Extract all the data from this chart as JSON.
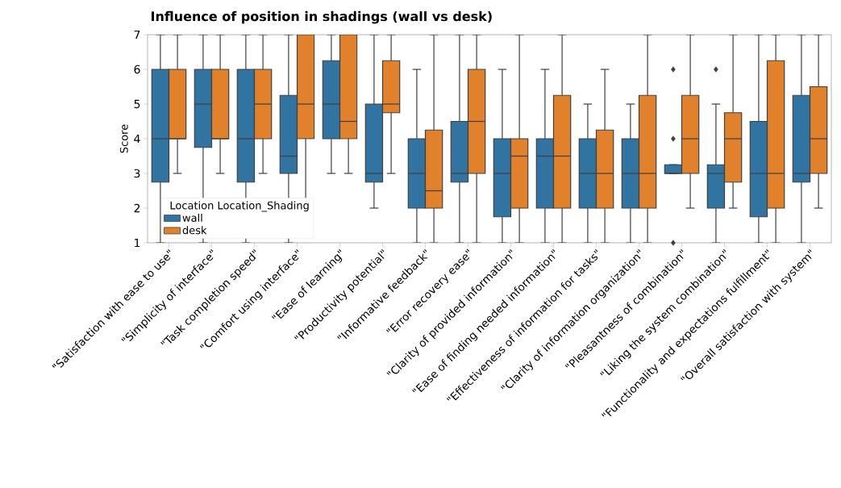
{
  "chart_data": {
    "type": "box",
    "title": "Influence of position in shadings (wall vs desk)",
    "ylabel": "Score",
    "legend_title": "Location Location_Shading",
    "legend": "bottom left",
    "marker": "diamond",
    "categories": [
      "\"Satisfaction with ease to use\"",
      "\"Simplicity of interface\"",
      "\"Task completion speed\"",
      "\"Comfort using interface\"",
      "\"Ease of learning\"",
      "\"Productivity potential\"",
      "\"Informative feedback\"",
      "\"Error recovery ease\"",
      "\"Clarity of provided information\"",
      "\"Ease of finding needed information\"",
      "\"Effectiveness of information for tasks\"",
      "\"Clarity of information organization\"",
      "\"Pleasantness of combination\"",
      "\"Liking the system combination\"",
      "\"Functionality and expectations fulfillment\"",
      "\"Overall satisfaction with system\""
    ],
    "ylim": [
      1,
      7
    ],
    "yticks": [
      1,
      2,
      3,
      4,
      5,
      6,
      7
    ],
    "series": [
      {
        "name": "wall",
        "color": "#3274a1",
        "boxes": [
          {
            "low": 1,
            "q1": 2.75,
            "median": 4,
            "q3": 6,
            "high": 7
          },
          {
            "low": 1,
            "q1": 3.75,
            "median": 5,
            "q3": 6,
            "high": 7
          },
          {
            "low": 1,
            "q1": 2.75,
            "median": 4,
            "q3": 6,
            "high": 7
          },
          {
            "low": 1,
            "q1": 3,
            "median": 3.5,
            "q3": 5.25,
            "high": 7
          },
          {
            "low": 3,
            "q1": 4,
            "median": 5,
            "q3": 6.25,
            "high": 7
          },
          {
            "low": 2,
            "q1": 2.75,
            "median": 3,
            "q3": 5,
            "high": 7
          },
          {
            "low": 1,
            "q1": 2,
            "median": 3,
            "q3": 4,
            "high": 6
          },
          {
            "low": 1,
            "q1": 2.75,
            "median": 3,
            "q3": 4.5,
            "high": 7
          },
          {
            "low": 1,
            "q1": 1.75,
            "median": 3,
            "q3": 4,
            "high": 6
          },
          {
            "low": 1,
            "q1": 2,
            "median": 3.5,
            "q3": 4,
            "high": 6
          },
          {
            "low": 1,
            "q1": 2,
            "median": 3,
            "q3": 4,
            "high": 5
          },
          {
            "low": 1,
            "q1": 2,
            "median": 3,
            "q3": 4,
            "high": 5
          },
          {
            "low": 3,
            "q1": 3,
            "median": 3,
            "q3": 3.25,
            "high": 3.25,
            "outliers": [
              6,
              4,
              1
            ]
          },
          {
            "low": 1,
            "q1": 2,
            "median": 3,
            "q3": 3.25,
            "high": 5,
            "outliers": [
              6
            ]
          },
          {
            "low": 1,
            "q1": 1.75,
            "median": 3,
            "q3": 4.5,
            "high": 7
          },
          {
            "low": 1,
            "q1": 2.75,
            "median": 3,
            "q3": 5.25,
            "high": 7
          }
        ]
      },
      {
        "name": "desk",
        "color": "#e1812c",
        "boxes": [
          {
            "low": 3,
            "q1": 4,
            "median": 4,
            "q3": 6,
            "high": 7
          },
          {
            "low": 3,
            "q1": 4,
            "median": 4,
            "q3": 6,
            "high": 7
          },
          {
            "low": 3,
            "q1": 4,
            "median": 5,
            "q3": 6,
            "high": 7
          },
          {
            "low": 2,
            "q1": 4,
            "median": 5,
            "q3": 7,
            "high": 7
          },
          {
            "low": 3,
            "q1": 4,
            "median": 4.5,
            "q3": 7,
            "high": 7
          },
          {
            "low": 3,
            "q1": 4.75,
            "median": 5,
            "q3": 6.25,
            "high": 7
          },
          {
            "low": 1,
            "q1": 2,
            "median": 2.5,
            "q3": 4.25,
            "high": 7
          },
          {
            "low": 1,
            "q1": 3,
            "median": 4.5,
            "q3": 6,
            "high": 7
          },
          {
            "low": 1,
            "q1": 2,
            "median": 3.5,
            "q3": 4,
            "high": 7
          },
          {
            "low": 1,
            "q1": 2,
            "median": 3.5,
            "q3": 5.25,
            "high": 7
          },
          {
            "low": 1,
            "q1": 2,
            "median": 3,
            "q3": 4.25,
            "high": 6
          },
          {
            "low": 1,
            "q1": 2,
            "median": 3,
            "q3": 5.25,
            "high": 7
          },
          {
            "low": 2,
            "q1": 3,
            "median": 4,
            "q3": 5.25,
            "high": 7
          },
          {
            "low": 2,
            "q1": 2.75,
            "median": 4,
            "q3": 4.75,
            "high": 7
          },
          {
            "low": 1,
            "q1": 2,
            "median": 3,
            "q3": 6.25,
            "high": 7
          },
          {
            "low": 2,
            "q1": 3,
            "median": 4,
            "q3": 5.5,
            "high": 7
          }
        ]
      }
    ]
  }
}
